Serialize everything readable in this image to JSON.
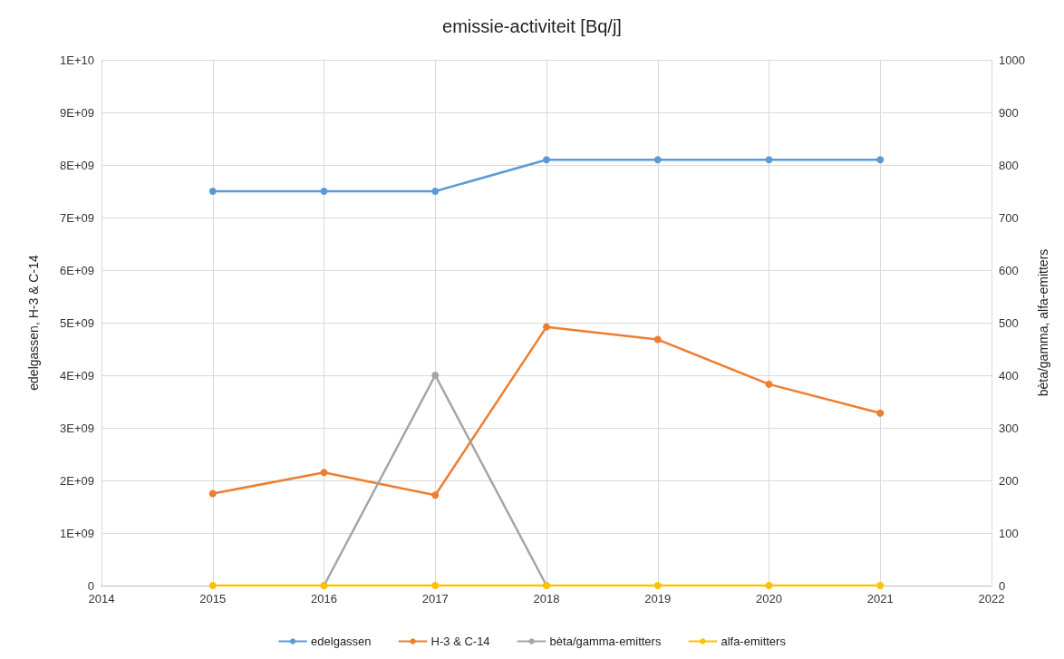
{
  "chart_data": {
    "type": "line",
    "title": "emissie-activiteit [Bq/j]",
    "ylabel": "edelgassen, H-3 & C-14",
    "y2label": "bèta/gamma, alfa-emitters",
    "x": [
      2015,
      2016,
      2017,
      2018,
      2019,
      2020,
      2021
    ],
    "series": [
      {
        "name": "edelgassen",
        "color": "#5b9bd5",
        "values": [
          7500000000,
          7500000000,
          7500000000,
          8100000000,
          8100000000,
          8100000000,
          8100000000
        ]
      },
      {
        "name": "H-3 & C-14",
        "color": "#ed7d31",
        "values": [
          1750000000,
          2150000000,
          1720000000,
          4920000000,
          4680000000,
          3830000000,
          3280000000
        ]
      },
      {
        "name": "bèta/gamma-emitters",
        "color": "#a5a5a5",
        "axis": "y2",
        "values": [
          null,
          0,
          400,
          0,
          null,
          null,
          null
        ]
      },
      {
        "name": "alfa-emitters",
        "color": "#ffc000",
        "axis": "y2",
        "values": [
          0,
          0,
          0,
          0,
          0,
          0,
          0
        ]
      }
    ],
    "xlim": [
      2014,
      2022
    ],
    "xticks": [
      2014,
      2015,
      2016,
      2017,
      2018,
      2019,
      2020,
      2021,
      2022
    ],
    "ylim": [
      0,
      10000000000
    ],
    "yticks": [
      0,
      {
        "value": 1000000000,
        "label": "1E+09"
      },
      {
        "value": 2000000000,
        "label": "2E+09"
      },
      {
        "value": 3000000000,
        "label": "3E+09"
      },
      {
        "value": 4000000000,
        "label": "4E+09"
      },
      {
        "value": 5000000000,
        "label": "5E+09"
      },
      {
        "value": 6000000000,
        "label": "6E+09"
      },
      {
        "value": 7000000000,
        "label": "7E+09"
      },
      {
        "value": 8000000000,
        "label": "8E+09"
      },
      {
        "value": 9000000000,
        "label": "9E+09"
      },
      {
        "value": 10000000000,
        "label": "1E+10"
      }
    ],
    "y2lim": [
      0,
      1000
    ],
    "y2ticks": [
      0,
      100,
      200,
      300,
      400,
      500,
      600,
      700,
      800,
      900,
      1000
    ],
    "grid": true,
    "legend": "bottom",
    "marker": "circle",
    "line_style": "solid"
  }
}
